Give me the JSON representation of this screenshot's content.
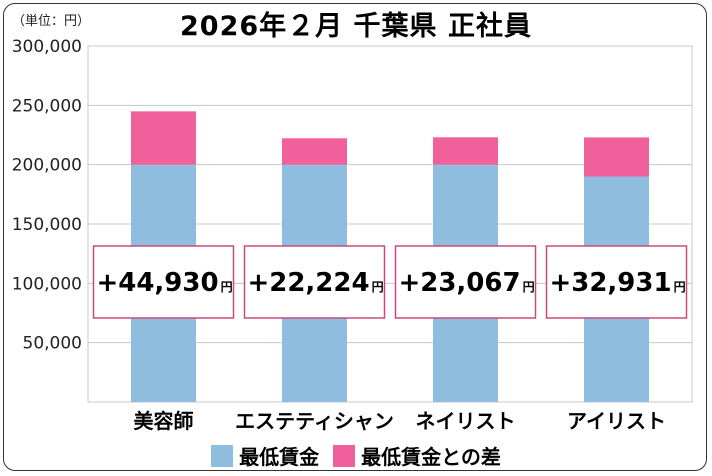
{
  "unit_label": "（単位：円）",
  "title": "2026年２月 千葉県 正社員",
  "colors": {
    "base": "#8fbde0",
    "diff": "#f0609a",
    "grid": "#c8c8c8",
    "badge_border": "#c94a7a"
  },
  "legend": [
    {
      "label": "最低賃金",
      "color": "#8fbde0"
    },
    {
      "label": "最低賃金との差",
      "color": "#f0609a"
    }
  ],
  "chart_data": {
    "type": "bar",
    "stacked": true,
    "categories": [
      "美容師",
      "エステティシャン",
      "ネイリスト",
      "アイリスト"
    ],
    "series": [
      {
        "name": "最低賃金",
        "values": [
          200000,
          200000,
          200000,
          190000
        ]
      },
      {
        "name": "最低賃金との差",
        "values": [
          44930,
          22224,
          23067,
          32931
        ]
      }
    ],
    "annotations": [
      "+44,930",
      "+22,224",
      "+23,067",
      "+32,931"
    ],
    "annotation_unit": "円",
    "yticks": [
      "50,000",
      "100,000",
      "150,000",
      "200,000",
      "250,000",
      "300,000"
    ],
    "ylim": [
      0,
      300000
    ],
    "grid": true,
    "legend_position": "bottom"
  }
}
